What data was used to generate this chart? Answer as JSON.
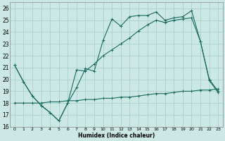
{
  "xlabel": "Humidex (Indice chaleur)",
  "bg_color": "#cce8e4",
  "grid_color": "#aacfcb",
  "line_color": "#1a6b60",
  "xlim": [
    -0.5,
    23.5
  ],
  "ylim": [
    16,
    26.5
  ],
  "xticks": [
    0,
    1,
    2,
    3,
    4,
    5,
    6,
    7,
    8,
    9,
    10,
    11,
    12,
    13,
    14,
    15,
    16,
    17,
    18,
    19,
    20,
    21,
    22,
    23
  ],
  "yticks": [
    16,
    17,
    18,
    19,
    20,
    21,
    22,
    23,
    24,
    25,
    26
  ],
  "series1_x": [
    0,
    1,
    2,
    3,
    4,
    5,
    6,
    7,
    8,
    9,
    10,
    11,
    12,
    13,
    14,
    15,
    16,
    17,
    18,
    19,
    20,
    21,
    22,
    23
  ],
  "series1_y": [
    21.2,
    19.8,
    18.6,
    17.8,
    17.2,
    16.5,
    18.0,
    19.3,
    20.9,
    20.7,
    23.3,
    25.1,
    24.5,
    25.3,
    25.4,
    25.4,
    25.7,
    25.0,
    25.2,
    25.3,
    25.8,
    23.2,
    19.9,
    18.9
  ],
  "series2_x": [
    0,
    1,
    2,
    3,
    4,
    5,
    6,
    7,
    8,
    9,
    10,
    11,
    12,
    13,
    14,
    15,
    16,
    17,
    18,
    19,
    20,
    21,
    22,
    23
  ],
  "series2_y": [
    21.2,
    19.8,
    18.6,
    17.8,
    17.2,
    16.5,
    18.0,
    20.8,
    20.7,
    21.3,
    22.0,
    22.5,
    23.0,
    23.5,
    24.1,
    24.6,
    25.0,
    24.8,
    25.0,
    25.1,
    25.2,
    23.2,
    20.0,
    19.0
  ],
  "series3_x": [
    0,
    1,
    2,
    3,
    4,
    5,
    6,
    7,
    8,
    9,
    10,
    11,
    12,
    13,
    14,
    15,
    16,
    17,
    18,
    19,
    20,
    21,
    22,
    23
  ],
  "series3_y": [
    18.0,
    18.0,
    18.0,
    18.0,
    18.1,
    18.1,
    18.2,
    18.2,
    18.3,
    18.3,
    18.4,
    18.4,
    18.5,
    18.5,
    18.6,
    18.7,
    18.8,
    18.8,
    18.9,
    19.0,
    19.0,
    19.1,
    19.1,
    19.2
  ],
  "title_fontsize": 6
}
